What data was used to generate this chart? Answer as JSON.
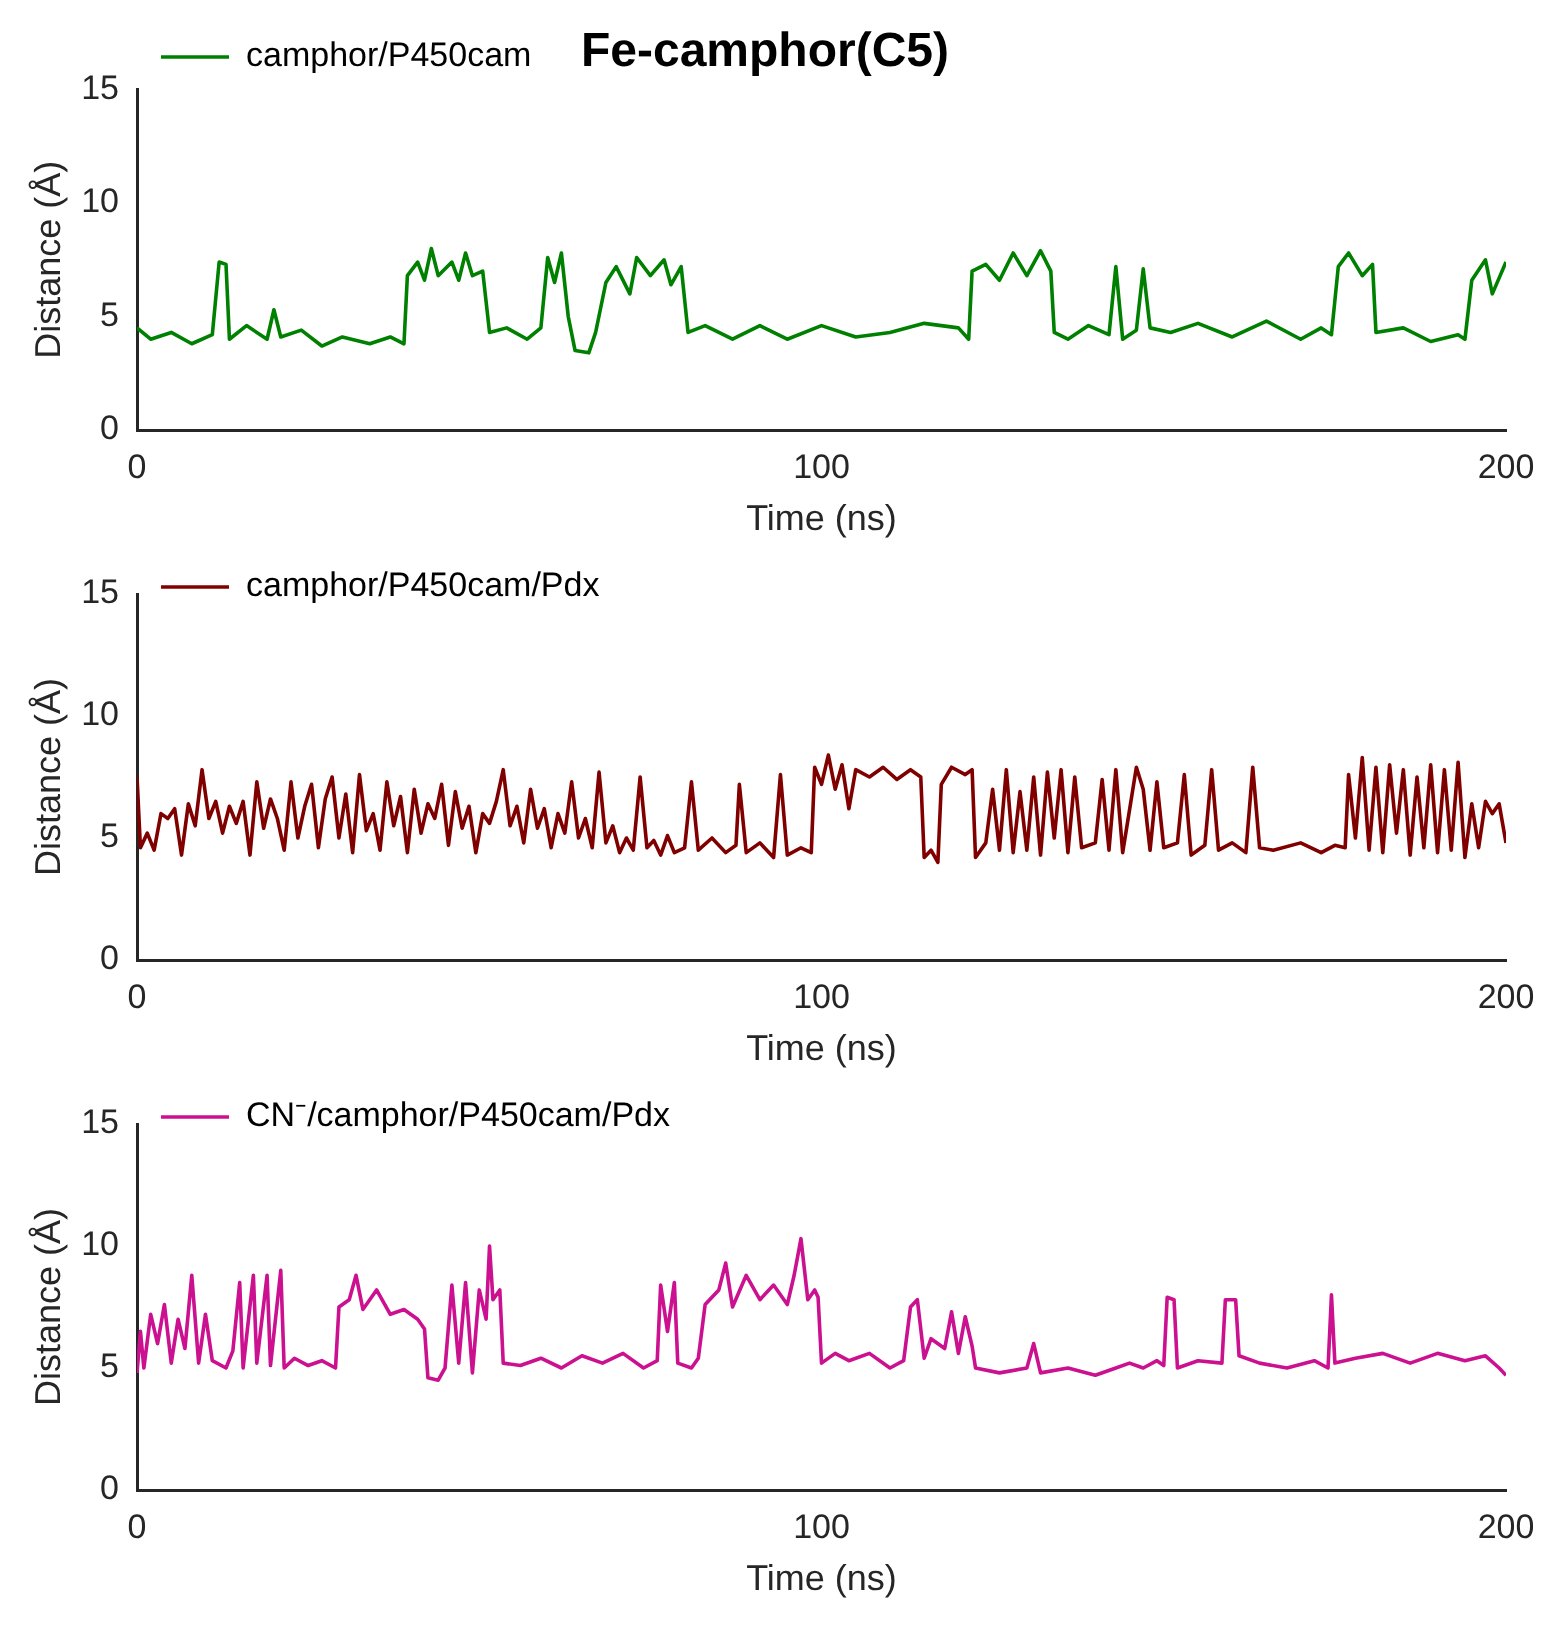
{
  "chart_data": [
    {
      "type": "line",
      "title": "Fe-camphor(C5)",
      "xlabel": "Time (ns)",
      "ylabel": "Distance (Å)",
      "xlim": [
        0,
        200
      ],
      "xticks": [
        0,
        100,
        200
      ],
      "ylim": [
        0,
        15
      ],
      "yticks": [
        0,
        5,
        10,
        15
      ],
      "grid": false,
      "legend": "top left",
      "series": [
        {
          "name": "camphor/P450cam",
          "color": "#008000",
          "x": [
            0,
            2,
            5,
            8,
            11,
            12,
            13,
            13.5,
            16,
            19,
            20,
            21,
            24,
            27,
            30,
            34,
            37,
            39,
            39.5,
            41,
            42,
            43,
            44,
            46,
            47,
            48,
            49,
            50.5,
            51.5,
            54,
            57,
            59,
            60,
            61,
            62,
            63,
            64,
            66,
            67,
            68.5,
            70,
            72,
            73,
            75,
            77,
            78,
            79.5,
            80.5,
            83,
            87,
            91,
            95,
            100,
            105,
            110,
            115,
            120,
            121.5,
            122,
            124,
            126,
            128,
            130,
            132,
            133.5,
            134,
            136,
            139,
            142,
            143,
            144,
            146,
            147,
            148,
            151,
            155,
            160,
            165,
            170,
            173,
            174.5,
            175.5,
            177,
            179,
            180.5,
            181,
            185,
            189,
            193,
            194,
            195,
            197,
            198,
            200
          ],
          "values": [
            4.5,
            4.0,
            4.3,
            3.8,
            4.2,
            7.4,
            7.3,
            4.0,
            4.6,
            4.0,
            5.3,
            4.1,
            4.4,
            3.7,
            4.1,
            3.8,
            4.1,
            3.8,
            6.8,
            7.4,
            6.6,
            8.0,
            6.8,
            7.4,
            6.6,
            7.8,
            6.8,
            7.0,
            4.3,
            4.5,
            4.0,
            4.5,
            7.6,
            6.5,
            7.8,
            5.0,
            3.5,
            3.4,
            4.3,
            6.5,
            7.2,
            6.0,
            7.6,
            6.8,
            7.5,
            6.4,
            7.2,
            4.3,
            4.6,
            4.0,
            4.6,
            4.0,
            4.6,
            4.1,
            4.3,
            4.7,
            4.5,
            4.0,
            7.0,
            7.3,
            6.6,
            7.8,
            6.8,
            7.9,
            7.0,
            4.3,
            4.0,
            4.6,
            4.2,
            7.2,
            4.0,
            4.4,
            7.1,
            4.5,
            4.3,
            4.7,
            4.1,
            4.8,
            4.0,
            4.5,
            4.2,
            7.2,
            7.8,
            6.8,
            7.3,
            4.3,
            4.5,
            3.9,
            4.2,
            4.0,
            6.6,
            7.5,
            6.0,
            7.4
          ]
        }
      ]
    },
    {
      "type": "line",
      "xlabel": "Time (ns)",
      "ylabel": "Distance (Å)",
      "xlim": [
        0,
        200
      ],
      "xticks": [
        0,
        100,
        200
      ],
      "ylim": [
        0,
        15
      ],
      "yticks": [
        0,
        5,
        10,
        15
      ],
      "grid": false,
      "legend": "top left",
      "series": [
        {
          "name": "camphor/P450cam/Pdx",
          "color": "#800000",
          "x": [
            0,
            0.5,
            1.5,
            2.5,
            3.5,
            4.5,
            5.5,
            6.5,
            7.5,
            8.5,
            9.5,
            10.5,
            11.5,
            12.5,
            13.5,
            14.5,
            15.5,
            16.5,
            17.5,
            18.5,
            19.5,
            20.5,
            21.5,
            22.5,
            23.5,
            24.5,
            25.5,
            26.5,
            27.5,
            28.5,
            29.5,
            30.5,
            31.5,
            32.5,
            33.5,
            34.5,
            35.5,
            36.5,
            37.5,
            38.5,
            39.5,
            40.5,
            41.5,
            42.5,
            43.5,
            44.5,
            45.5,
            46.5,
            47.5,
            48.5,
            49.5,
            50.5,
            51.5,
            52.5,
            53.5,
            54.5,
            55.5,
            56.5,
            57.5,
            58.5,
            59.5,
            60.5,
            61.5,
            62.5,
            63.5,
            64.5,
            65.5,
            66.5,
            67.5,
            68.5,
            69.5,
            70.5,
            71.5,
            72.5,
            73.5,
            74.5,
            75.5,
            76.5,
            77.5,
            78.5,
            80,
            81,
            82,
            84,
            86,
            87.5,
            88,
            89,
            91,
            93,
            94,
            95,
            97,
            98.5,
            99,
            100,
            101,
            102,
            103,
            104,
            105,
            107,
            109,
            111,
            113,
            114.5,
            115,
            116,
            117,
            117.5,
            119,
            121,
            122,
            122.5,
            124,
            125,
            126,
            127,
            128,
            129,
            130,
            131,
            132,
            133,
            134,
            135,
            136,
            137,
            138,
            140,
            141,
            142,
            143,
            144,
            146,
            147,
            148,
            149,
            150,
            152,
            153,
            154,
            156,
            157,
            158,
            160,
            162,
            163,
            164,
            166,
            170,
            173,
            175,
            176.5,
            177,
            178,
            179,
            180,
            181,
            182,
            183,
            184,
            185,
            186,
            187,
            188,
            189,
            190,
            191,
            192,
            193,
            194,
            195,
            196,
            197,
            198,
            199,
            200
          ],
          "values": [
            7.5,
            4.6,
            5.2,
            4.5,
            6.0,
            5.8,
            6.2,
            4.3,
            6.4,
            5.5,
            7.8,
            5.8,
            6.5,
            5.2,
            6.3,
            5.6,
            6.5,
            4.3,
            7.3,
            5.4,
            6.6,
            5.8,
            4.5,
            7.3,
            5.0,
            6.3,
            7.2,
            4.6,
            6.6,
            7.5,
            5.0,
            6.8,
            4.4,
            7.6,
            5.3,
            6.0,
            4.5,
            7.3,
            5.5,
            6.7,
            4.4,
            7.0,
            5.2,
            6.4,
            5.8,
            7.2,
            4.7,
            6.9,
            5.4,
            6.3,
            4.4,
            6.0,
            5.6,
            6.5,
            7.8,
            5.5,
            6.3,
            4.8,
            7.0,
            5.4,
            6.2,
            4.6,
            6.0,
            5.2,
            7.3,
            5.0,
            5.8,
            4.6,
            7.7,
            4.8,
            5.5,
            4.4,
            5.0,
            4.5,
            7.5,
            4.6,
            4.9,
            4.3,
            5.1,
            4.4,
            4.6,
            7.3,
            4.5,
            5.0,
            4.4,
            4.7,
            7.2,
            4.4,
            4.8,
            4.2,
            7.6,
            4.3,
            4.6,
            4.4,
            7.9,
            7.2,
            8.4,
            7.0,
            8.0,
            6.2,
            7.8,
            7.5,
            7.9,
            7.4,
            7.8,
            7.5,
            4.2,
            4.5,
            4.0,
            7.2,
            7.9,
            7.6,
            7.8,
            4.2,
            4.8,
            7.0,
            4.5,
            7.8,
            4.4,
            6.9,
            4.5,
            7.5,
            4.3,
            7.7,
            5.0,
            7.8,
            4.4,
            7.5,
            4.6,
            4.8,
            7.4,
            4.5,
            7.8,
            4.4,
            7.9,
            7.0,
            4.5,
            7.3,
            4.6,
            4.8,
            7.6,
            4.3,
            4.7,
            7.8,
            4.5,
            4.8,
            4.4,
            7.9,
            4.6,
            4.5,
            4.8,
            4.4,
            4.7,
            4.6,
            7.6,
            5.0,
            8.3,
            4.5,
            7.9,
            4.4,
            8.0,
            5.2,
            7.8,
            4.3,
            7.5,
            4.6,
            8.0,
            4.4,
            7.8,
            4.5,
            8.1,
            4.2,
            6.4,
            4.6,
            6.5,
            6.0,
            6.4,
            4.8
          ]
        }
      ]
    },
    {
      "type": "line",
      "xlabel": "Time (ns)",
      "ylabel": "Distance (Å)",
      "xlim": [
        0,
        200
      ],
      "xticks": [
        0,
        100,
        200
      ],
      "ylim": [
        0,
        15
      ],
      "yticks": [
        0,
        5,
        10,
        15
      ],
      "grid": false,
      "legend": "top left",
      "series": [
        {
          "name": "CN⁻/camphor/P450cam/Pdx",
          "color": "#cc1190",
          "x": [
            0,
            0.5,
            1,
            2,
            3,
            4,
            5,
            6,
            7,
            8,
            9,
            10,
            11,
            13,
            14,
            15,
            15.5,
            17,
            17.5,
            19,
            19.5,
            21,
            21.5,
            23,
            25,
            27,
            29,
            29.5,
            31,
            32,
            33,
            35,
            37,
            39,
            41,
            42,
            42.5,
            44,
            45,
            46,
            47,
            48,
            49,
            50,
            51,
            51.5,
            52,
            53,
            53.5,
            56,
            59,
            62,
            65,
            68,
            71,
            74,
            76,
            76.5,
            77.5,
            78.5,
            79,
            81,
            82,
            83,
            85,
            86,
            87,
            89,
            91,
            93,
            95,
            96,
            97,
            98,
            99,
            99.5,
            100,
            102,
            104,
            107,
            110,
            112,
            113,
            114,
            115,
            116,
            118,
            119,
            120,
            121,
            122,
            122.5,
            126,
            130,
            131,
            132,
            136,
            140,
            143,
            145,
            147,
            149,
            150,
            150.5,
            151.5,
            152,
            155,
            158.5,
            159,
            160.5,
            161,
            164,
            168,
            172,
            174,
            174.5,
            175,
            178,
            182,
            186,
            190,
            194,
            197,
            199,
            200
          ],
          "values": [
            4.8,
            6.5,
            5.0,
            7.2,
            6.0,
            7.6,
            5.2,
            7.0,
            5.8,
            8.8,
            5.2,
            7.2,
            5.3,
            5.0,
            5.7,
            8.5,
            5.0,
            8.8,
            5.2,
            8.8,
            5.1,
            9.0,
            5.0,
            5.4,
            5.1,
            5.3,
            5.0,
            7.5,
            7.8,
            8.8,
            7.4,
            8.2,
            7.2,
            7.4,
            7.0,
            6.6,
            4.6,
            4.5,
            5.0,
            8.4,
            5.2,
            8.5,
            4.8,
            8.2,
            7.0,
            10.0,
            7.8,
            8.2,
            5.2,
            5.1,
            5.4,
            5.0,
            5.5,
            5.2,
            5.6,
            5.0,
            5.3,
            8.4,
            6.5,
            8.5,
            5.2,
            5.0,
            5.4,
            7.6,
            8.2,
            9.3,
            7.5,
            8.8,
            7.8,
            8.4,
            7.6,
            8.8,
            10.3,
            7.8,
            8.2,
            7.9,
            5.2,
            5.6,
            5.3,
            5.6,
            5.0,
            5.3,
            7.5,
            7.8,
            5.4,
            6.2,
            5.8,
            7.3,
            5.6,
            7.1,
            5.9,
            5.0,
            4.8,
            5.0,
            6.0,
            4.8,
            5.0,
            4.7,
            5.0,
            5.2,
            5.0,
            5.3,
            5.1,
            7.9,
            7.8,
            5.0,
            5.3,
            5.2,
            7.8,
            7.8,
            5.5,
            5.2,
            5.0,
            5.3,
            5.0,
            8.0,
            5.2,
            5.4,
            5.6,
            5.2,
            5.6,
            5.3,
            5.5,
            5.0,
            4.7
          ]
        }
      ]
    }
  ]
}
